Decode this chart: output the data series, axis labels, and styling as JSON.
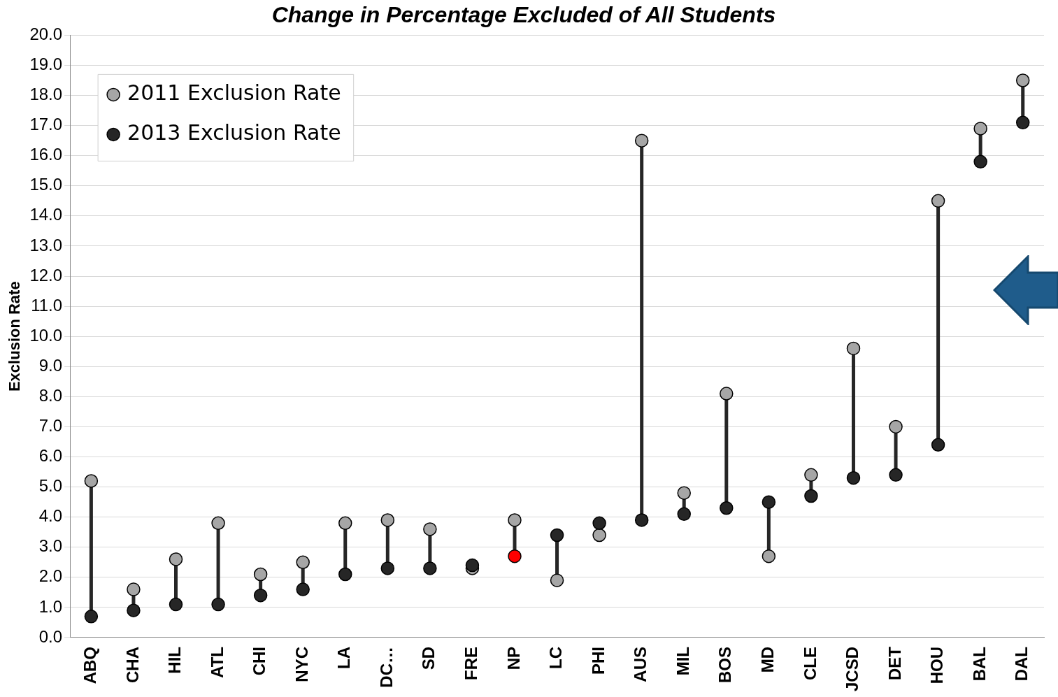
{
  "chart_data": {
    "type": "scatter",
    "title": "Change in Percentage Excluded of All Students",
    "ylabel": "Exclusion Rate",
    "categories": [
      "ABQ",
      "CHA",
      "HIL",
      "ATL",
      "CHI",
      "NYC",
      "LA",
      "DC…",
      "SD",
      "FRE",
      "NP",
      "LC",
      "PHI",
      "AUS",
      "MIL",
      "BOS",
      "MD",
      "CLE",
      "JCSD",
      "DET",
      "HOU",
      "BAL",
      "DAL"
    ],
    "series": [
      {
        "name": "2011 Exclusion Rate",
        "color": "#a6a6a6",
        "values": [
          5.2,
          1.6,
          2.6,
          3.8,
          2.1,
          2.5,
          3.8,
          3.9,
          3.6,
          2.3,
          3.9,
          1.9,
          3.4,
          16.5,
          4.8,
          8.1,
          2.7,
          5.4,
          9.6,
          7.0,
          14.5,
          16.9,
          18.5
        ]
      },
      {
        "name": "2013 Exclusion Rate",
        "color": "#262626",
        "colors": [
          "#262626",
          "#262626",
          "#262626",
          "#262626",
          "#262626",
          "#262626",
          "#262626",
          "#262626",
          "#262626",
          "#262626",
          "#ff0000",
          "#262626",
          "#262626",
          "#262626",
          "#262626",
          "#262626",
          "#262626",
          "#262626",
          "#262626",
          "#262626",
          "#262626",
          "#262626",
          "#262626"
        ],
        "values": [
          0.7,
          0.9,
          1.1,
          1.1,
          1.4,
          1.6,
          2.1,
          2.3,
          2.3,
          2.4,
          2.7,
          3.4,
          3.8,
          3.9,
          4.1,
          4.3,
          4.5,
          4.7,
          5.3,
          5.4,
          6.4,
          15.8,
          17.1
        ]
      }
    ],
    "ylim": [
      0,
      20
    ],
    "yticks": [
      {
        "value": 0,
        "label": "0.0"
      },
      {
        "value": 1,
        "label": "1.0"
      },
      {
        "value": 2,
        "label": "2.0"
      },
      {
        "value": 3,
        "label": "3.0"
      },
      {
        "value": 4,
        "label": "4.0"
      },
      {
        "value": 5,
        "label": "5.0"
      },
      {
        "value": 6,
        "label": "6.0"
      },
      {
        "value": 7,
        "label": "7.0"
      },
      {
        "value": 8,
        "label": "8.0"
      },
      {
        "value": 9,
        "label": "9.0"
      },
      {
        "value": 10,
        "label": "10.0"
      },
      {
        "value": 11,
        "label": "11.0"
      },
      {
        "value": 12,
        "label": "12.0"
      },
      {
        "value": 13,
        "label": "13.0"
      },
      {
        "value": 14,
        "label": "14.0"
      },
      {
        "value": 15,
        "label": "15.0"
      },
      {
        "value": 16,
        "label": "16.0"
      },
      {
        "value": 17,
        "label": "17.0"
      },
      {
        "value": 18,
        "label": "18.0"
      },
      {
        "value": 19,
        "label": "19.0"
      },
      {
        "value": 20,
        "label": "20.0"
      }
    ],
    "grid": "y",
    "legend": "top left",
    "marker": "circle"
  }
}
